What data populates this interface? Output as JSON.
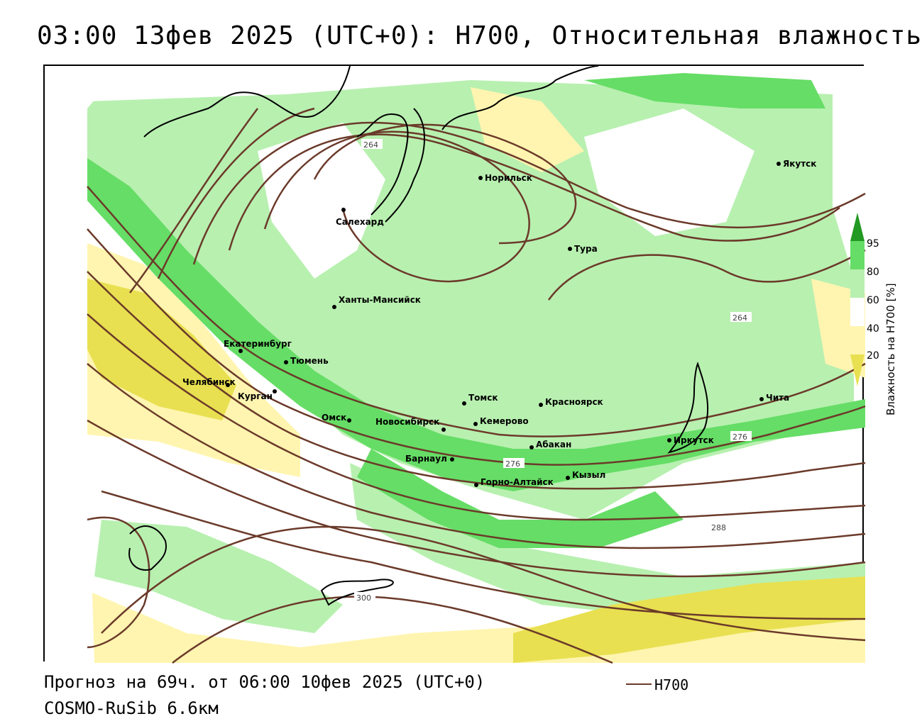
{
  "header": {
    "title": "03:00 13фев 2025 (UTC+0): H700, Относительная влажность"
  },
  "map": {
    "cities": [
      {
        "name": "Якутск"
      },
      {
        "name": "Норильск"
      },
      {
        "name": "Салехард"
      },
      {
        "name": "Тура"
      },
      {
        "name": "Ханты-Мансийск"
      },
      {
        "name": "Екатеринбург"
      },
      {
        "name": "Тюмень"
      },
      {
        "name": "Челябинск"
      },
      {
        "name": "Курган"
      },
      {
        "name": "Омск"
      },
      {
        "name": "Новосибирск"
      },
      {
        "name": "Томск"
      },
      {
        "name": "Кемерово"
      },
      {
        "name": "Красноярск"
      },
      {
        "name": "Абакан"
      },
      {
        "name": "Барнаул"
      },
      {
        "name": "Горно-Алтайск"
      },
      {
        "name": "Кызыл"
      },
      {
        "name": "Иркутск"
      },
      {
        "name": "Чита"
      }
    ],
    "contour_labels": [
      "264",
      "264",
      "276",
      "276",
      "288",
      "300"
    ],
    "colors": {
      "light_green": "#b8f0b0",
      "green": "#66dd66",
      "dark_green": "#229922",
      "light_yellow": "#fff5b0",
      "yellow": "#e8e050",
      "dark_yellow": "#c8b820",
      "contour": "#6b3a2a"
    }
  },
  "colorbar": {
    "title": "Влажность на H700 [%]",
    "ticks": [
      "95",
      "80",
      "60",
      "40",
      "20"
    ]
  },
  "footer": {
    "forecast": "Прогноз на 69ч. от 06:00 10фев 2025 (UTC+0)",
    "model": "COSMO-RuSib 6.6км",
    "legend_label": "H700"
  }
}
